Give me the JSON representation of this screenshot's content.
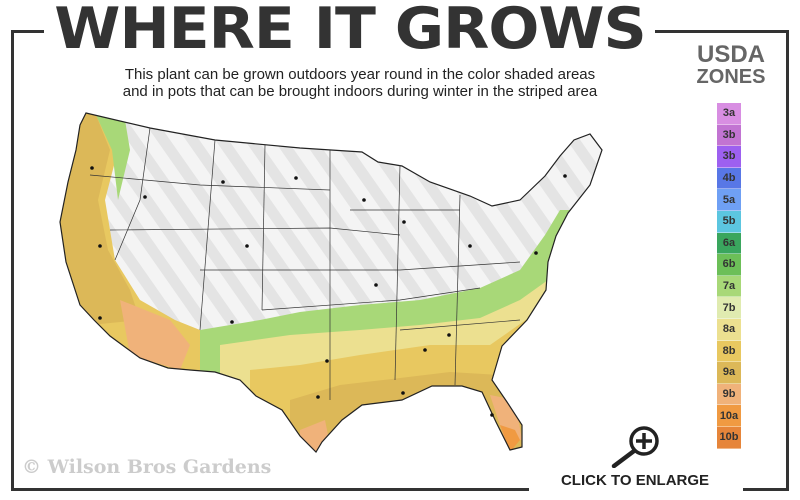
{
  "header": {
    "title": "WHERE IT GROWS",
    "subtitle_line1": "This plant can be grown outdoors year round in the color shaded areas",
    "subtitle_line2": "and in pots that can be brought indoors during winter in the striped area"
  },
  "legend": {
    "title_line1": "USDA",
    "title_line2": "ZONES",
    "zones": [
      {
        "label": "3a",
        "color": "#d88ee2"
      },
      {
        "label": "3b",
        "color": "#c274d2"
      },
      {
        "label": "3b",
        "color": "#9d60f0"
      },
      {
        "label": "4b",
        "color": "#5877e6"
      },
      {
        "label": "5a",
        "color": "#6fa0f4"
      },
      {
        "label": "5b",
        "color": "#5cc6e0"
      },
      {
        "label": "6a",
        "color": "#3aa65e"
      },
      {
        "label": "6b",
        "color": "#6cbf58"
      },
      {
        "label": "7a",
        "color": "#a8d878"
      },
      {
        "label": "7b",
        "color": "#e0ebb0"
      },
      {
        "label": "8a",
        "color": "#ece090"
      },
      {
        "label": "8b",
        "color": "#e8c860"
      },
      {
        "label": "9a",
        "color": "#dcb858"
      },
      {
        "label": "9b",
        "color": "#f0b27a"
      },
      {
        "label": "10a",
        "color": "#f09a42"
      },
      {
        "label": "10b",
        "color": "#e6853a"
      }
    ]
  },
  "footer": {
    "copyright": "© Wilson Bros Gardens",
    "enlarge_label": "CLICK TO ENLARGE"
  }
}
